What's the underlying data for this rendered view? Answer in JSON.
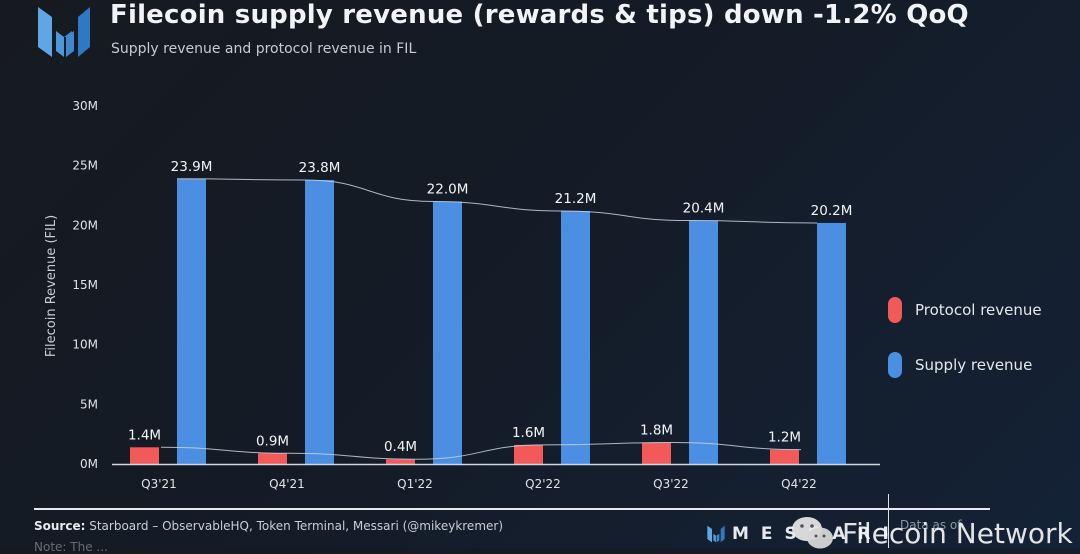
{
  "header": {
    "title": "Filecoin supply revenue (rewards & tips) down -1.2% QoQ",
    "subtitle": "Supply revenue and protocol revenue in FIL"
  },
  "colors": {
    "protocol": "#f25a5a",
    "supply": "#4a8fe2",
    "trendline": "#c9d3df",
    "axis": "#d3d8de"
  },
  "chart_data": {
    "type": "bar",
    "title": "Filecoin supply revenue (rewards & tips) down -1.2% QoQ",
    "subtitle": "Supply revenue and protocol revenue in FIL",
    "xlabel": "",
    "ylabel": "Filecoin Revenue (FIL)",
    "ylim": [
      0,
      30
    ],
    "yunit": "M",
    "yticks": [
      "0M",
      "5M",
      "10M",
      "15M",
      "20M",
      "25M",
      "30M"
    ],
    "ytick_values": [
      0,
      5,
      10,
      15,
      20,
      25,
      30
    ],
    "grid": false,
    "legend_position": "right",
    "categories": [
      "Q3'21",
      "Q4'21",
      "Q1'22",
      "Q2'22",
      "Q3'22",
      "Q4'22"
    ],
    "series": [
      {
        "name": "Protocol revenue",
        "values": [
          1.4,
          0.9,
          0.4,
          1.6,
          1.8,
          1.2
        ],
        "labels": [
          "1.4M",
          "0.9M",
          "0.4M",
          "1.6M",
          "1.8M",
          "1.2M"
        ],
        "trendline": true
      },
      {
        "name": "Supply revenue",
        "values": [
          23.9,
          23.8,
          22.0,
          21.2,
          20.4,
          20.2
        ],
        "labels": [
          "23.9M",
          "23.8M",
          "22.0M",
          "21.2M",
          "20.4M",
          "20.2M"
        ],
        "trendline": true
      }
    ]
  },
  "legend": [
    {
      "label": "Protocol revenue"
    },
    {
      "label": "Supply revenue"
    }
  ],
  "footer": {
    "source_label": "Source:",
    "source_text": " Starboard – ObservableHQ, Token Terminal, Messari (@mikeykremer)",
    "note_text": "Note: The ...",
    "brand": "MESSARI",
    "data_as_of": "Data as of",
    "watermark": "Filecoin Network"
  }
}
